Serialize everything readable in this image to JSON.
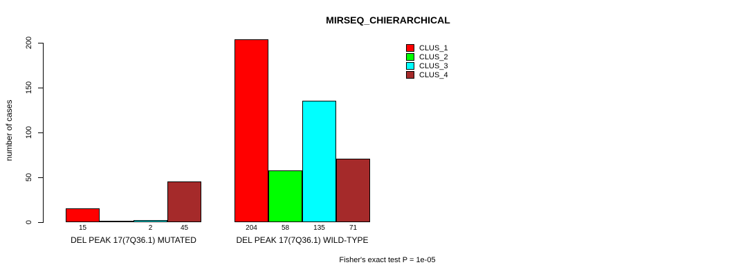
{
  "title": "MIRSEQ_CHIERARCHICAL",
  "footer": "Fisher's exact test P = 1e-05",
  "y_axis": {
    "label": "number of cases",
    "ticks": [
      0,
      50,
      100,
      150,
      200
    ]
  },
  "legend": {
    "entries": [
      {
        "label": "CLUS_1",
        "color": "#FF0000"
      },
      {
        "label": "CLUS_2",
        "color": "#00FF00"
      },
      {
        "label": "CLUS_3",
        "color": "#00FFFF"
      },
      {
        "label": "CLUS_4",
        "color": "#A52A2A"
      }
    ]
  },
  "chart_data": {
    "type": "bar",
    "title": "MIRSEQ_CHIERARCHICAL",
    "ylabel": "number of cases",
    "ylim": [
      0,
      210
    ],
    "y_ticks": [
      0,
      50,
      100,
      150,
      200
    ],
    "grid": false,
    "legend_position": "top-right-outside",
    "series_names": [
      "CLUS_1",
      "CLUS_2",
      "CLUS_3",
      "CLUS_4"
    ],
    "series_colors": [
      "#FF0000",
      "#00FF00",
      "#00FFFF",
      "#A52A2A"
    ],
    "groups": [
      {
        "label": "DEL PEAK 17(7Q36.1) MUTATED",
        "values": [
          15,
          0,
          2,
          45
        ],
        "bar_labels": [
          "15",
          "",
          "2",
          "45"
        ]
      },
      {
        "label": "DEL PEAK 17(7Q36.1) WILD-TYPE",
        "values": [
          204,
          58,
          135,
          71
        ],
        "bar_labels": [
          "204",
          "58",
          "135",
          "71"
        ]
      }
    ],
    "annotation": "Fisher's exact test P = 1e-05"
  }
}
